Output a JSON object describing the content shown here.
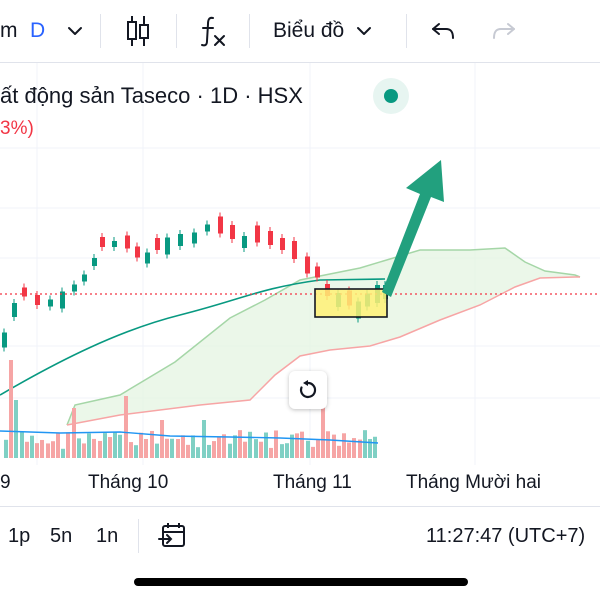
{
  "toolbar": {
    "symbol_fragment": "m",
    "interval": "D",
    "chart_type_label": "Biểu đồ",
    "icons": [
      "chevron-down-icon",
      "candlestick-icon",
      "indicators-fx-icon",
      "chevron-down-icon",
      "undo-icon",
      "redo-icon"
    ]
  },
  "legend": {
    "title": "ất động sản Taseco · 1D · HSX",
    "change": "3%)"
  },
  "time_axis": {
    "labels": [
      "9",
      "Tháng 10",
      "Tháng 11",
      "Tháng Mười hai"
    ]
  },
  "bottom_bar": {
    "ranges": [
      "1p",
      "5n",
      "1n"
    ],
    "clock": "11:27:47 (UTC+7)",
    "icons": [
      "goto-date-icon"
    ]
  },
  "colors": {
    "up": "#089981",
    "down": "#f23645",
    "ema": "#089981",
    "cloud_fill": "#e4f4e1",
    "cloud_upper": "#a5d6a7",
    "cloud_lower": "#f7a5a5",
    "volume_line": "#2196f3",
    "highlight": "#fff176",
    "arrow": "#22a07e"
  }
}
